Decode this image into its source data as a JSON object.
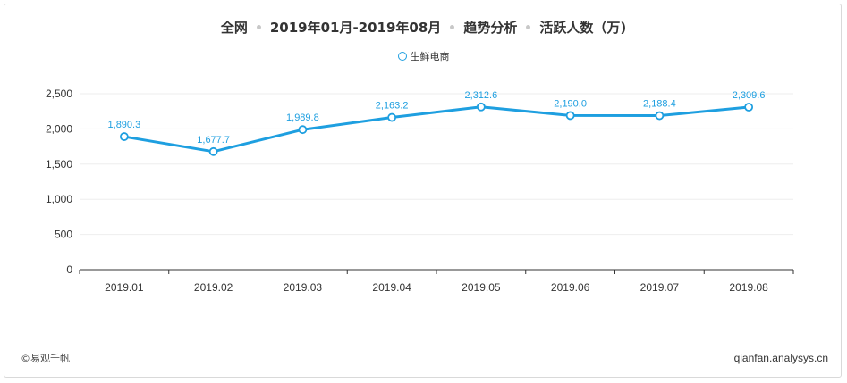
{
  "title": {
    "segments": [
      "全网",
      "2019年01月-2019年08月",
      "趋势分析",
      "活跃人数（万)"
    ]
  },
  "colors": {
    "series": "#1e9fe0",
    "axis": "#333333",
    "grid": "#eeeeee"
  },
  "chart_data": {
    "type": "line",
    "categories": [
      "2019.01",
      "2019.02",
      "2019.03",
      "2019.04",
      "2019.05",
      "2019.06",
      "2019.07",
      "2019.08"
    ],
    "series": [
      {
        "name": "生鲜电商",
        "values": [
          1890.3,
          1677.7,
          1989.8,
          2163.2,
          2312.6,
          2190.0,
          2188.4,
          2309.6
        ],
        "labels": [
          "1,890.3",
          "1,677.7",
          "1,989.8",
          "2,163.2",
          "2,312.6",
          "2,190.0",
          "2,188.4",
          "2,309.6"
        ]
      }
    ],
    "yticks": [
      0,
      500,
      1000,
      1500,
      2000,
      2500
    ],
    "ytick_labels": [
      "0",
      "500",
      "1,000",
      "1,500",
      "2,000",
      "2,500"
    ],
    "ylim": [
      0,
      2500
    ],
    "grid": true,
    "legend": "top-center"
  },
  "footer": {
    "brand": "©易观千帆",
    "site": "qianfan.analysys.cn"
  }
}
